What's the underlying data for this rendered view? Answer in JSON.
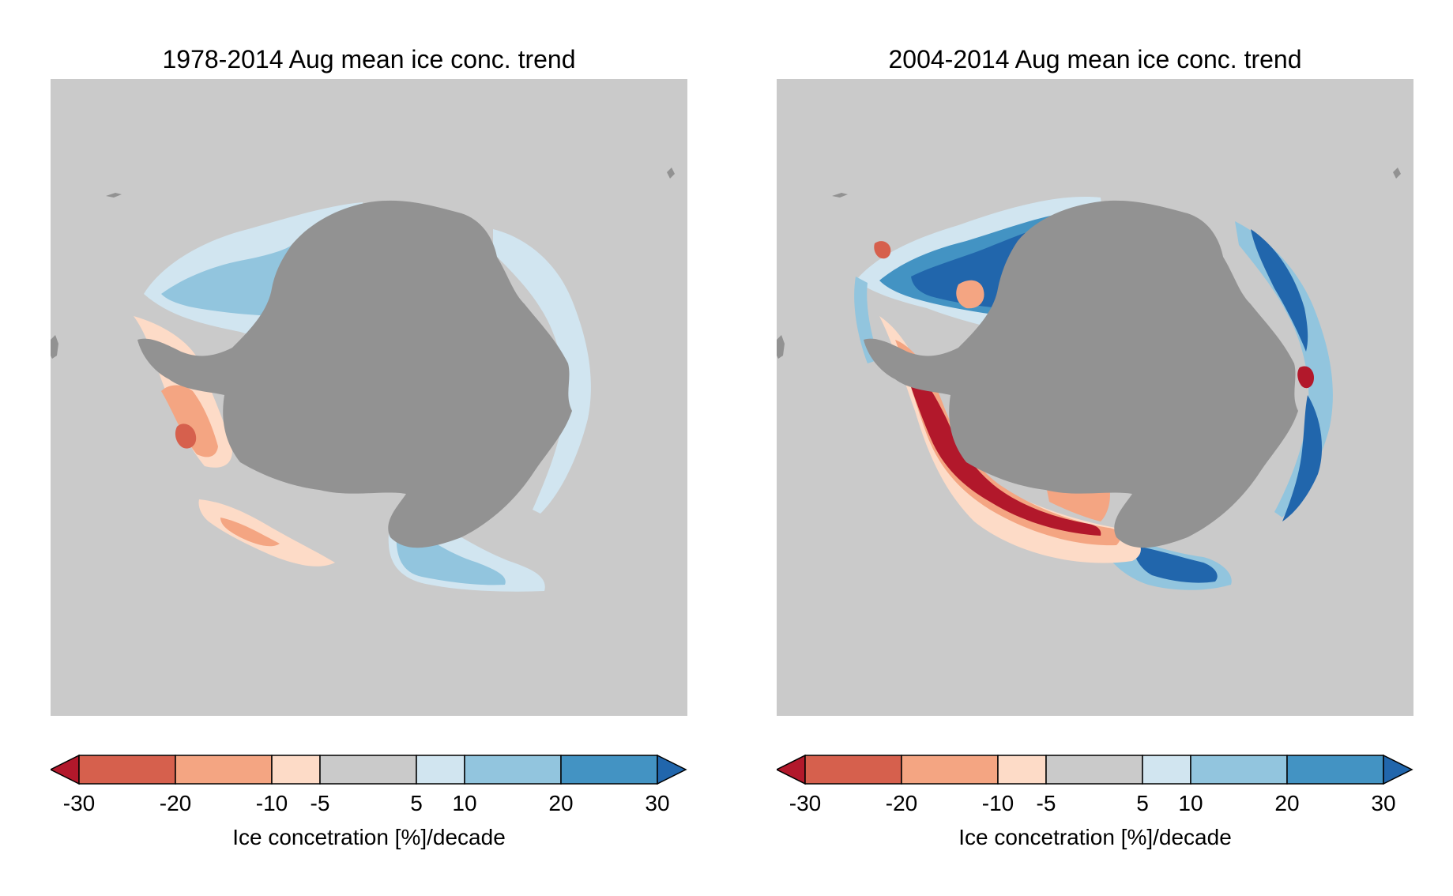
{
  "panels": [
    {
      "title": "1978-2014 Aug mean ice conc. trend",
      "period": "1978-2014"
    },
    {
      "title": "2004-2014 Aug mean ice conc. trend",
      "period": "2004-2014"
    }
  ],
  "colorbar": {
    "title": "Ice concetration [%]/decade",
    "tick_labels": [
      "-30",
      "-20",
      "-10",
      "-5",
      "5",
      "10",
      "20",
      "30"
    ],
    "ticks": [
      -30,
      -20,
      -10,
      -5,
      5,
      10,
      20,
      30
    ],
    "extend": "both",
    "bins": [
      {
        "from": -30,
        "to": -20,
        "color": "#d6604d"
      },
      {
        "from": -20,
        "to": -10,
        "color": "#f4a582"
      },
      {
        "from": -10,
        "to": -5,
        "color": "#fddbc7"
      },
      {
        "from": -5,
        "to": 5,
        "color": "#cacaca"
      },
      {
        "from": 5,
        "to": 10,
        "color": "#d1e5f0"
      },
      {
        "from": 10,
        "to": 20,
        "color": "#92c5de"
      },
      {
        "from": 20,
        "to": 30,
        "color": "#4393c3"
      }
    ],
    "under_color": "#b2182b",
    "over_color": "#2166ac"
  },
  "colors": {
    "ocean": "#cacaca",
    "land": "#929292",
    "strong_negative": "#b2182b",
    "strong_positive": "#2166ac"
  }
}
